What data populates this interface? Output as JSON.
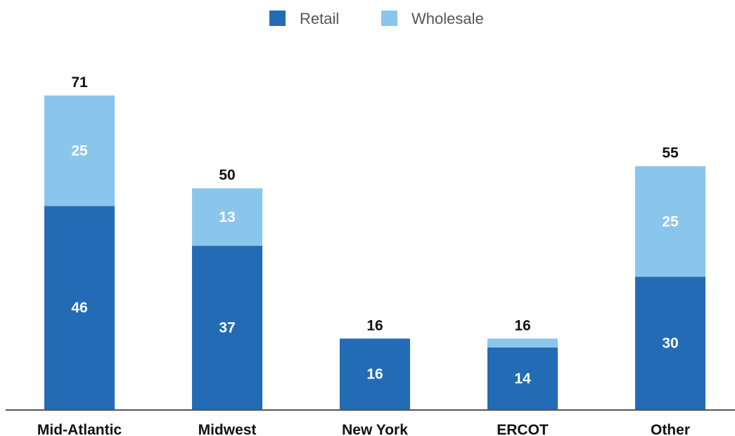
{
  "chart_data": {
    "type": "bar",
    "stacked": true,
    "categories": [
      "Mid-Atlantic",
      "Midwest",
      "New York",
      "ERCOT",
      "Other"
    ],
    "series": [
      {
        "name": "Retail",
        "color": "#236bb5",
        "values": [
          46,
          37,
          16,
          14,
          30
        ],
        "labels": [
          "46",
          "37",
          "16",
          "14",
          "30"
        ]
      },
      {
        "name": "Wholesale",
        "color": "#8ac6ec",
        "values": [
          25,
          13,
          0,
          2,
          25
        ],
        "labels": [
          "25",
          "13",
          "",
          "",
          "25"
        ]
      }
    ],
    "totals": [
      71,
      50,
      16,
      16,
      55
    ],
    "total_labels": [
      "71",
      "50",
      "16",
      "16",
      "55"
    ],
    "ylim": [
      0,
      71
    ],
    "legend": "top-center",
    "grid": false
  }
}
